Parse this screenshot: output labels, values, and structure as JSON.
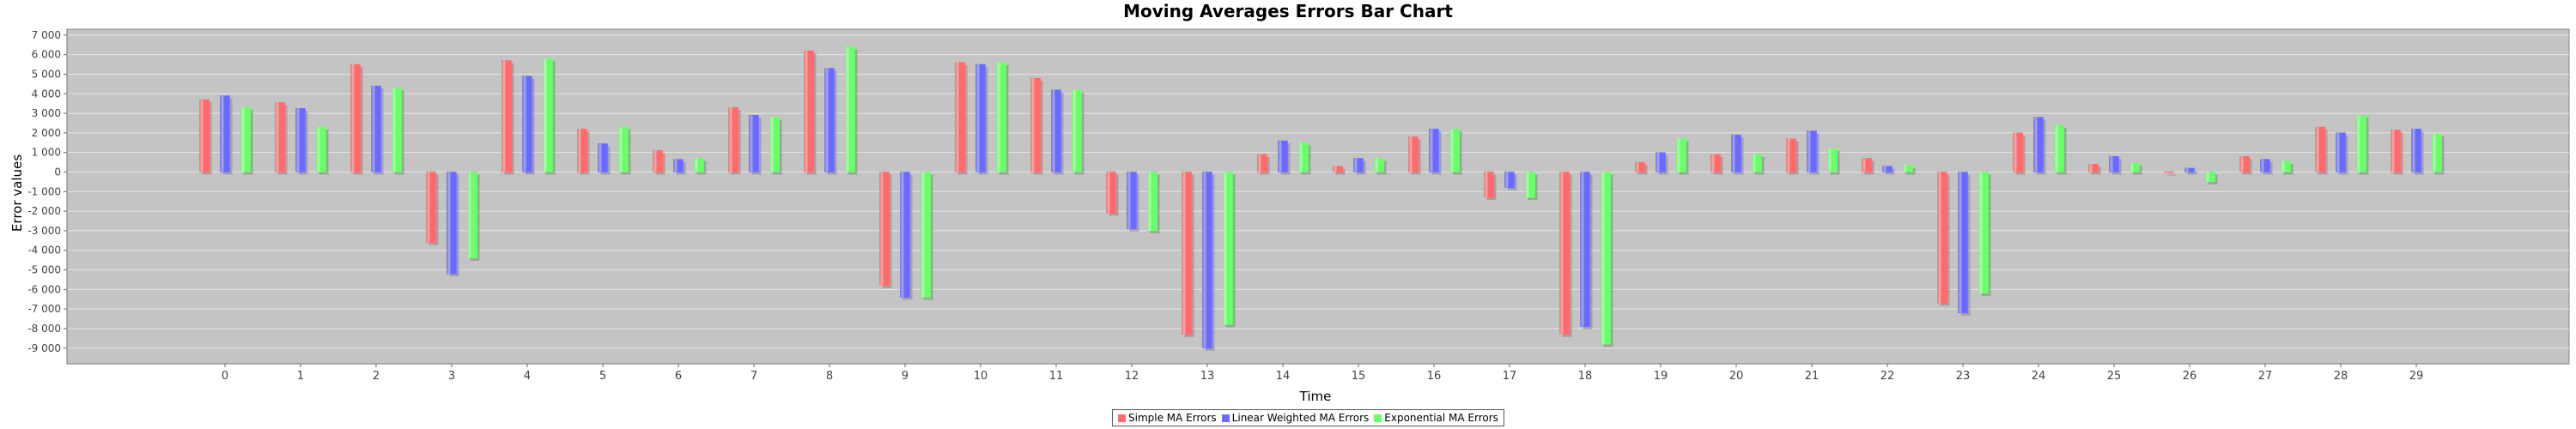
{
  "chart_data": {
    "type": "bar",
    "title": "Moving Averages Errors Bar Chart",
    "xlabel": "Time",
    "ylabel": "Error values",
    "categories": [
      "0",
      "1",
      "2",
      "3",
      "4",
      "5",
      "6",
      "7",
      "8",
      "9",
      "10",
      "11",
      "12",
      "13",
      "14",
      "15",
      "16",
      "17",
      "18",
      "19",
      "20",
      "21",
      "22",
      "23",
      "24",
      "25",
      "26",
      "27",
      "28",
      "29"
    ],
    "yticks": [
      "-9 000",
      "-8 000",
      "-7 000",
      "-6 000",
      "-5 000",
      "-4 000",
      "-3 000",
      "-2 000",
      "-1 000",
      "0",
      "1 000",
      "2 000",
      "3 000",
      "4 000",
      "5 000",
      "6 000",
      "7 000"
    ],
    "ylim": [
      -9800,
      7300
    ],
    "grid": true,
    "legend_position": "bottom",
    "series": [
      {
        "name": "Simple MA Errors",
        "color": "#ff6a6a",
        "values": [
          3700,
          3550,
          5500,
          -3600,
          5700,
          2200,
          1100,
          3300,
          6200,
          -5800,
          5600,
          4800,
          -2100,
          -8300,
          900,
          300,
          1800,
          -1300,
          -8300,
          500,
          900,
          1700,
          700,
          -6700,
          2000,
          400,
          0,
          800,
          2300,
          2150
        ]
      },
      {
        "name": "Linear Weighted MA Errors",
        "color": "#6a6aff",
        "values": [
          3900,
          3250,
          4400,
          -5200,
          4900,
          1450,
          650,
          2900,
          5300,
          -6400,
          5500,
          4200,
          -2900,
          -9000,
          1600,
          700,
          2200,
          -800,
          -7900,
          1000,
          1900,
          2100,
          300,
          -7200,
          2800,
          800,
          200,
          650,
          2000,
          2200
        ]
      },
      {
        "name": "Exponential MA Errors",
        "color": "#6aff6a",
        "values": [
          3300,
          2300,
          4300,
          -4400,
          5800,
          2300,
          700,
          2800,
          6400,
          -6400,
          5600,
          4200,
          -3000,
          -7800,
          1500,
          700,
          2200,
          -1300,
          -8800,
          1700,
          900,
          1200,
          350,
          -6200,
          2400,
          450,
          -500,
          550,
          2900,
          1950
        ]
      }
    ]
  }
}
